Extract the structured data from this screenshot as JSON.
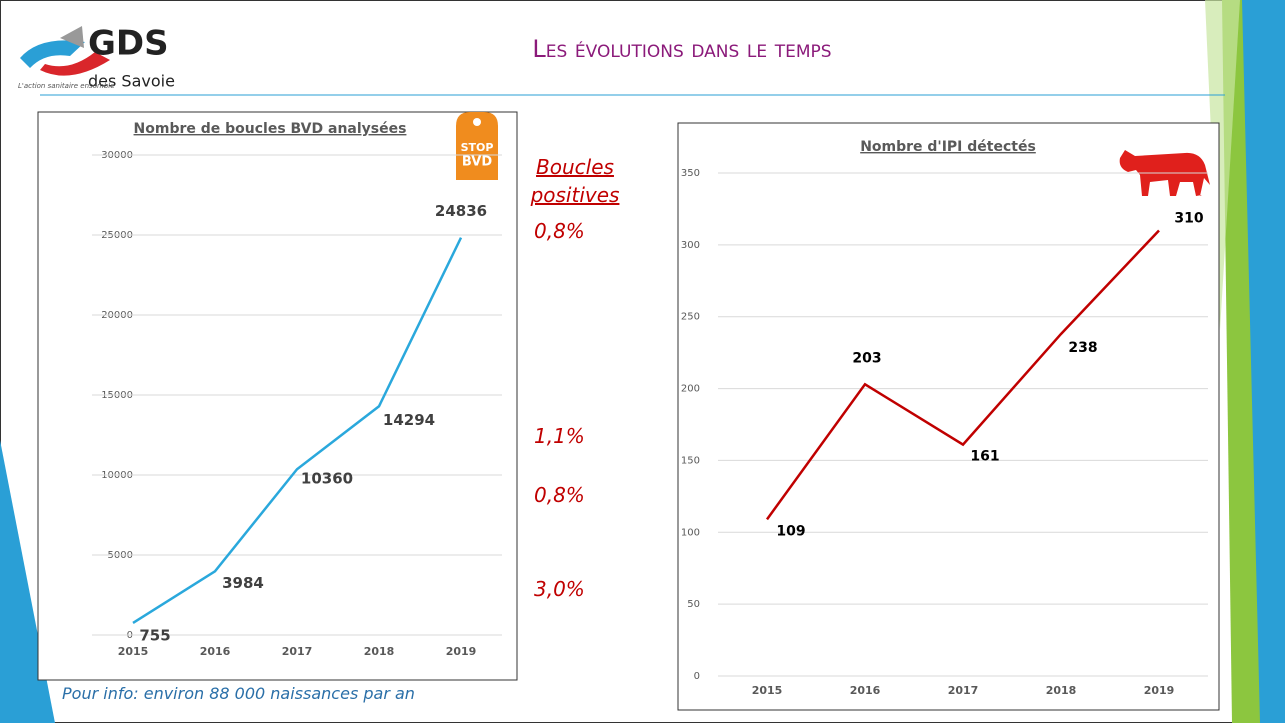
{
  "header": {
    "title": "Les évolutions dans le temps",
    "logo_name": "GDS",
    "logo_region": "des Savoie",
    "logo_tagline": "L'action sanitaire ensemble",
    "tag_top": "STOP",
    "tag_bottom": "BVD"
  },
  "annotation": {
    "heading": "Boucles positives",
    "rates": [
      "0,8%",
      "1,1%",
      "0,8%",
      "3,0%"
    ]
  },
  "footer_note": "Pour info: environ 88 000 naissances par an",
  "chart_data": [
    {
      "type": "line",
      "title": "Nombre de boucles BVD analysées",
      "categories": [
        "2015",
        "2016",
        "2017",
        "2018",
        "2019"
      ],
      "values": [
        755,
        3984,
        10360,
        14294,
        24836
      ],
      "color": "#2aa8dc",
      "ylim": [
        0,
        30000
      ],
      "yticks": [
        0,
        5000,
        10000,
        15000,
        20000,
        25000,
        30000
      ],
      "grid": true
    },
    {
      "type": "line",
      "title": "Nombre d'IPI détectés",
      "categories": [
        "2015",
        "2016",
        "2017",
        "2018",
        "2019"
      ],
      "values": [
        109,
        203,
        161,
        238,
        310
      ],
      "color": "#c00000",
      "ylim": [
        0,
        350
      ],
      "yticks": [
        0,
        50,
        100,
        150,
        200,
        250,
        300,
        350
      ],
      "grid": true
    }
  ]
}
